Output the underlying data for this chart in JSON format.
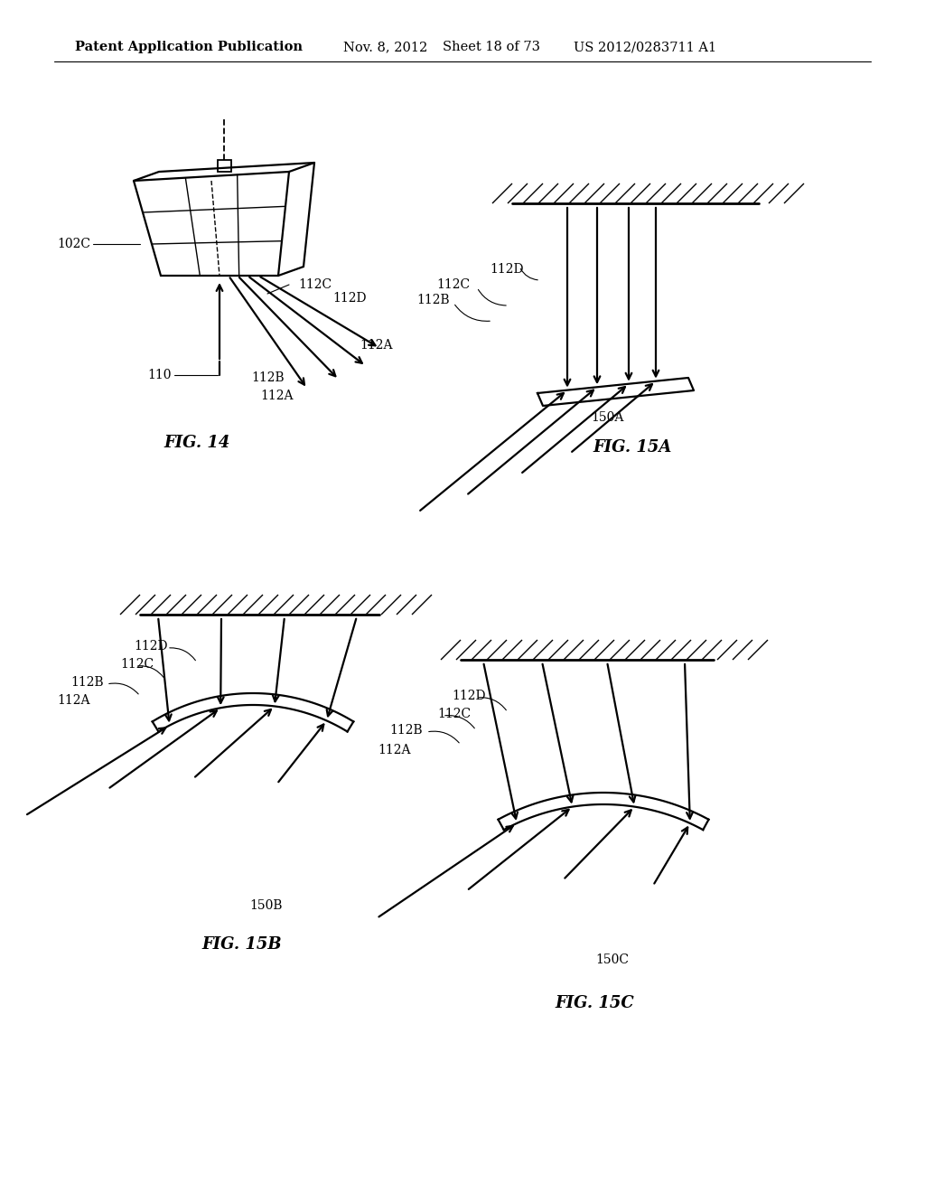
{
  "header_left": "Patent Application Publication",
  "header_mid": "Nov. 8, 2012",
  "header_sheet": "Sheet 18 of 73",
  "header_right": "US 2012/0283711 A1",
  "fig14_label": "FIG. 14",
  "fig15a_label": "FIG. 15A",
  "fig15b_label": "FIG. 15B",
  "fig15c_label": "FIG. 15C",
  "bg_color": "#ffffff",
  "line_color": "#000000",
  "font_size_header": 10.5,
  "font_size_label": 10,
  "font_size_fig": 13
}
